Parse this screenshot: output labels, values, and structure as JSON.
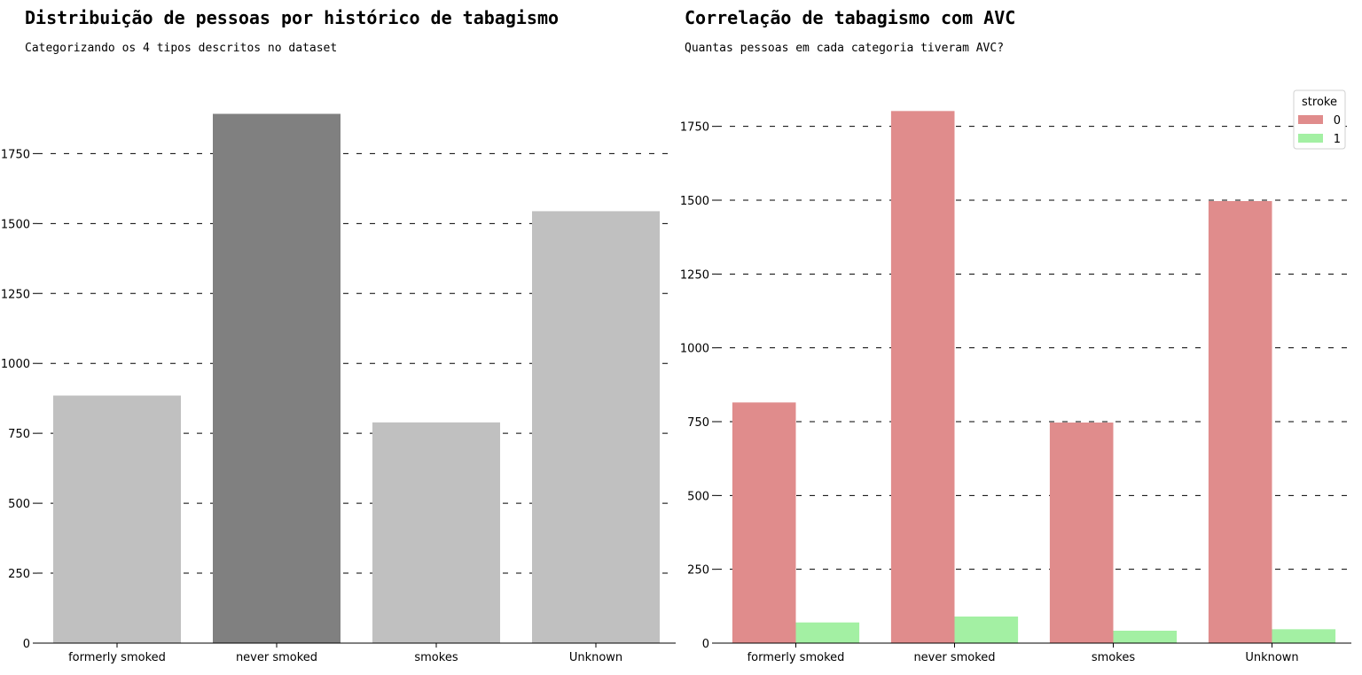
{
  "chart_data": [
    {
      "type": "bar",
      "title": "Distribuição de pessoas por histórico de tabagismo",
      "subtitle": "Categorizando os 4 tipos descritos no dataset",
      "xlabel": "",
      "ylabel": "",
      "categories": [
        "formerly smoked",
        "never smoked",
        "smokes",
        "Unknown"
      ],
      "values": [
        885,
        1892,
        789,
        1544
      ],
      "colors": [
        "#c0c0c0",
        "#808080",
        "#c0c0c0",
        "#c0c0c0"
      ],
      "ylim": [
        0,
        1900
      ],
      "yticks": [
        0,
        250,
        500,
        750,
        1000,
        1250,
        1500,
        1750
      ],
      "grid": true
    },
    {
      "type": "bar",
      "title": "Correlação de tabagismo com AVC",
      "subtitle": "Quantas pessoas em cada categoria tiveram AVC?",
      "xlabel": "",
      "ylabel": "",
      "categories": [
        "formerly smoked",
        "never smoked",
        "smokes",
        "Unknown"
      ],
      "series": [
        {
          "name": "0",
          "color": "#e08c8c",
          "values": [
            815,
            1802,
            747,
            1497
          ]
        },
        {
          "name": "1",
          "color": "#a3f0a3",
          "values": [
            70,
            90,
            42,
            47
          ]
        }
      ],
      "legend_title": "stroke",
      "legend_position": "top-right",
      "ylim": [
        0,
        1800
      ],
      "yticks": [
        0,
        250,
        500,
        750,
        1000,
        1250,
        1500,
        1750
      ],
      "grid": true
    }
  ]
}
